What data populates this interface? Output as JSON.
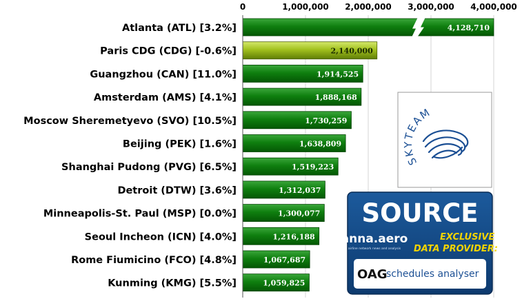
{
  "chart_data": {
    "type": "bar",
    "orientation": "horizontal",
    "categories": [
      "Atlanta (ATL) [3.2%]",
      "Paris CDG (CDG) [-0.6%]",
      "Guangzhou (CAN) [11.0%]",
      "Amsterdam (AMS) [4.1%]",
      "Moscow Sheremetyevo (SVO) [10.5%]",
      "Beijing (PEK) [1.6%]",
      "Shanghai Pudong (PVG) [6.5%]",
      "Detroit (DTW) [3.6%]",
      "Minneapolis-St. Paul  (MSP) [0.0%]",
      "Seoul Incheon (ICN) [4.0%]",
      "Rome Fiumicino (FCO) [4.8%]",
      "Kunming (KMG) [5.5%]"
    ],
    "values": [
      4128710,
      2140000,
      1914525,
      1888168,
      1730259,
      1638809,
      1519223,
      1312037,
      1300077,
      1216188,
      1067687,
      1059825
    ],
    "value_labels": [
      "4,128,710",
      "2,140,000",
      "1,914,525",
      "1,888,168",
      "1,730,259",
      "1,638,809",
      "1,519,223",
      "1,312,037",
      "1,300,077",
      "1,216,188",
      "1,067,687",
      "1,059,825"
    ],
    "highlighted_category": "Paris CDG (CDG) [-0.6%]",
    "x_ticks": [
      "0",
      "1,000,000",
      "2,000,000",
      "3,000,000",
      "4,000,000"
    ],
    "xlim": [
      0,
      4000000
    ],
    "axis_break": true,
    "colors": {
      "bar": "#0e7d0e",
      "highlight": "#9cbd1c"
    }
  },
  "logos": {
    "skyteam": {
      "text": "SKYTEAM"
    },
    "source": {
      "title": "SOURCE",
      "brand": "anna.aero",
      "tagline": "airline network news and analysis",
      "line1": "EXCLUSIVE",
      "line2": "DATA PROVIDER:",
      "oag": "OAG",
      "oag_product": "schedules analyser"
    }
  }
}
